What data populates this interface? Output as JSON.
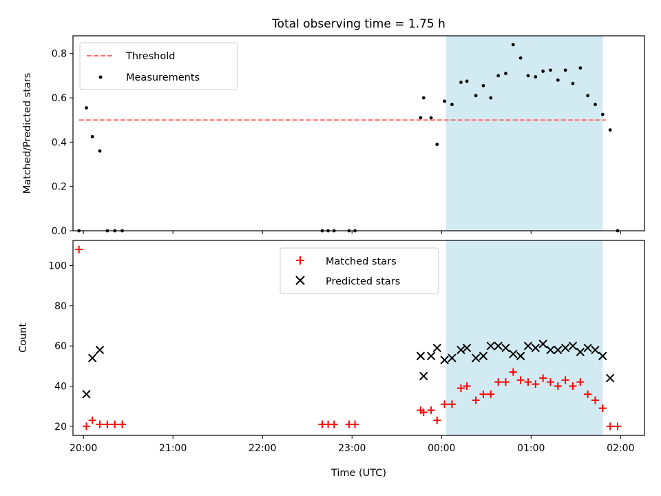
{
  "chart_data": {
    "title": "Total observing time = 1.75 h",
    "xlabel": "Time (UTC)",
    "x_ticks": [
      "20:00",
      "21:00",
      "22:00",
      "23:00",
      "00:00",
      "01:00",
      "02:00"
    ],
    "x_range": [
      "19:53",
      "02:16"
    ],
    "shaded_interval": [
      "00:03",
      "01:48"
    ],
    "shade_color": "#add8e6",
    "panels": [
      {
        "type": "scatter",
        "ylabel": "Matched/Predicted stars",
        "ylim": [
          0,
          0.88
        ],
        "y_ticks": [
          "0.0",
          "0.2",
          "0.4",
          "0.6",
          "0.8"
        ],
        "legend_position": "upper-left",
        "threshold": {
          "name": "Threshold",
          "value": 0.5,
          "x_start": "19:57",
          "x_end": "01:50",
          "color": "#ff6b6b",
          "style": "dashed"
        },
        "series": [
          {
            "name": "Measurements",
            "marker": "dot",
            "color": "#000000",
            "points": [
              [
                "19:57",
                0.0
              ],
              [
                "20:02",
                0.555
              ],
              [
                "20:06",
                0.425
              ],
              [
                "20:11",
                0.36
              ],
              [
                "20:16",
                0.0
              ],
              [
                "20:21",
                0.0
              ],
              [
                "20:26",
                0.0
              ],
              [
                "22:40",
                0.0
              ],
              [
                "22:44",
                0.0
              ],
              [
                "22:48",
                0.0
              ],
              [
                "22:58",
                0.0
              ],
              [
                "23:02",
                0.0
              ],
              [
                "23:46",
                0.51
              ],
              [
                "23:48",
                0.6
              ],
              [
                "23:53",
                0.51
              ],
              [
                "23:57",
                0.39
              ],
              [
                "00:02",
                0.585
              ],
              [
                "00:07",
                0.57
              ],
              [
                "00:13",
                0.67
              ],
              [
                "00:17",
                0.675
              ],
              [
                "00:23",
                0.61
              ],
              [
                "00:28",
                0.655
              ],
              [
                "00:33",
                0.6
              ],
              [
                "00:38",
                0.7
              ],
              [
                "00:43",
                0.71
              ],
              [
                "00:48",
                0.84
              ],
              [
                "00:53",
                0.78
              ],
              [
                "00:58",
                0.7
              ],
              [
                "01:03",
                0.695
              ],
              [
                "01:08",
                0.72
              ],
              [
                "01:13",
                0.725
              ],
              [
                "01:18",
                0.68
              ],
              [
                "01:23",
                0.725
              ],
              [
                "01:28",
                0.665
              ],
              [
                "01:33",
                0.735
              ],
              [
                "01:38",
                0.61
              ],
              [
                "01:43",
                0.57
              ],
              [
                "01:48",
                0.525
              ],
              [
                "01:53",
                0.455
              ],
              [
                "01:58",
                0.0
              ]
            ]
          }
        ]
      },
      {
        "type": "scatter",
        "ylabel": "Count",
        "ylim": [
          15.5,
          112.5
        ],
        "y_ticks": [
          "20",
          "40",
          "60",
          "80",
          "100"
        ],
        "legend_position": "upper-center",
        "series": [
          {
            "name": "Matched stars",
            "marker": "plus",
            "color": "#ff0000",
            "points": [
              [
                "19:57",
                108
              ],
              [
                "20:02",
                20
              ],
              [
                "20:06",
                23
              ],
              [
                "20:11",
                21
              ],
              [
                "20:16",
                21
              ],
              [
                "20:21",
                21
              ],
              [
                "20:26",
                21
              ],
              [
                "22:40",
                21
              ],
              [
                "22:44",
                21
              ],
              [
                "22:48",
                21
              ],
              [
                "22:58",
                21
              ],
              [
                "23:02",
                21
              ],
              [
                "23:46",
                28
              ],
              [
                "23:48",
                27
              ],
              [
                "23:53",
                28
              ],
              [
                "23:57",
                23
              ],
              [
                "00:02",
                31
              ],
              [
                "00:07",
                31
              ],
              [
                "00:13",
                39
              ],
              [
                "00:17",
                40
              ],
              [
                "00:23",
                33
              ],
              [
                "00:28",
                36
              ],
              [
                "00:33",
                36
              ],
              [
                "00:38",
                42
              ],
              [
                "00:43",
                42
              ],
              [
                "00:48",
                47
              ],
              [
                "00:53",
                43
              ],
              [
                "00:58",
                42
              ],
              [
                "01:03",
                41
              ],
              [
                "01:08",
                44
              ],
              [
                "01:13",
                42
              ],
              [
                "01:18",
                40
              ],
              [
                "01:23",
                43
              ],
              [
                "01:28",
                40
              ],
              [
                "01:33",
                42
              ],
              [
                "01:38",
                36
              ],
              [
                "01:43",
                33
              ],
              [
                "01:48",
                29
              ],
              [
                "01:53",
                20
              ],
              [
                "01:58",
                20
              ]
            ]
          },
          {
            "name": "Predicted stars",
            "marker": "x",
            "color": "#000000",
            "points": [
              [
                "20:02",
                36
              ],
              [
                "20:06",
                54
              ],
              [
                "20:11",
                58
              ],
              [
                "23:46",
                55
              ],
              [
                "23:48",
                45
              ],
              [
                "23:53",
                55
              ],
              [
                "23:57",
                59
              ],
              [
                "00:02",
                53
              ],
              [
                "00:07",
                54
              ],
              [
                "00:13",
                58
              ],
              [
                "00:17",
                59
              ],
              [
                "00:23",
                54
              ],
              [
                "00:28",
                55
              ],
              [
                "00:33",
                60
              ],
              [
                "00:38",
                60
              ],
              [
                "00:43",
                59
              ],
              [
                "00:48",
                56
              ],
              [
                "00:53",
                55
              ],
              [
                "00:58",
                60
              ],
              [
                "01:03",
                59
              ],
              [
                "01:08",
                61
              ],
              [
                "01:13",
                58
              ],
              [
                "01:18",
                58
              ],
              [
                "01:23",
                59
              ],
              [
                "01:28",
                60
              ],
              [
                "01:33",
                57
              ],
              [
                "01:38",
                59
              ],
              [
                "01:43",
                58
              ],
              [
                "01:48",
                55
              ],
              [
                "01:53",
                44
              ]
            ]
          }
        ]
      }
    ]
  }
}
